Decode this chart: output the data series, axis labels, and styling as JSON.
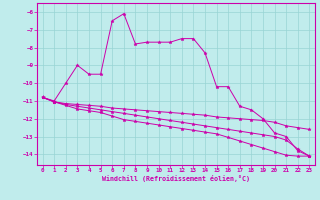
{
  "background_color": "#c0ecec",
  "grid_color": "#98d4d4",
  "line_color": "#cc00aa",
  "xlabel": "Windchill (Refroidissement éolien,°C)",
  "xlim": [
    -0.5,
    23.5
  ],
  "ylim": [
    -14.6,
    -5.5
  ],
  "xticks": [
    0,
    1,
    2,
    3,
    4,
    5,
    6,
    7,
    8,
    9,
    10,
    11,
    12,
    13,
    14,
    15,
    16,
    17,
    18,
    19,
    20,
    21,
    22,
    23
  ],
  "yticks": [
    -6,
    -7,
    -8,
    -9,
    -10,
    -11,
    -12,
    -13,
    -14
  ],
  "series1": {
    "x": [
      0,
      1,
      2,
      3,
      4,
      5,
      6,
      7,
      8,
      9,
      10,
      11,
      12,
      13,
      14,
      15,
      16,
      17,
      18,
      19,
      20,
      21,
      22,
      23
    ],
    "y": [
      -10.8,
      -11.0,
      -10.0,
      -9.0,
      -9.5,
      -9.5,
      -6.5,
      -6.1,
      -7.8,
      -7.7,
      -7.7,
      -7.7,
      -7.5,
      -7.5,
      -8.3,
      -10.2,
      -10.2,
      -11.3,
      -11.5,
      -12.0,
      -12.8,
      -13.0,
      -13.8,
      -14.1
    ]
  },
  "series2": {
    "x": [
      0,
      1,
      2,
      3,
      4,
      5,
      6,
      7,
      8,
      9,
      10,
      11,
      12,
      13,
      14,
      15,
      16,
      17,
      18,
      19,
      20,
      21,
      22,
      23
    ],
    "y": [
      -10.8,
      -11.05,
      -11.15,
      -11.2,
      -11.25,
      -11.3,
      -11.4,
      -11.45,
      -11.5,
      -11.55,
      -11.6,
      -11.65,
      -11.7,
      -11.75,
      -11.8,
      -11.9,
      -11.95,
      -12.0,
      -12.05,
      -12.1,
      -12.2,
      -12.4,
      -12.5,
      -12.6
    ]
  },
  "series3": {
    "x": [
      0,
      1,
      2,
      3,
      4,
      5,
      6,
      7,
      8,
      9,
      10,
      11,
      12,
      13,
      14,
      15,
      16,
      17,
      18,
      19,
      20,
      21,
      22,
      23
    ],
    "y": [
      -10.8,
      -11.05,
      -11.2,
      -11.3,
      -11.4,
      -11.5,
      -11.6,
      -11.7,
      -11.8,
      -11.9,
      -12.0,
      -12.1,
      -12.2,
      -12.3,
      -12.4,
      -12.5,
      -12.6,
      -12.7,
      -12.8,
      -12.9,
      -13.0,
      -13.2,
      -13.7,
      -14.1
    ]
  },
  "series4": {
    "x": [
      0,
      1,
      2,
      3,
      4,
      5,
      6,
      7,
      8,
      9,
      10,
      11,
      12,
      13,
      14,
      15,
      16,
      17,
      18,
      19,
      20,
      21,
      22,
      23
    ],
    "y": [
      -10.8,
      -11.05,
      -11.25,
      -11.45,
      -11.55,
      -11.65,
      -11.85,
      -12.05,
      -12.15,
      -12.25,
      -12.35,
      -12.45,
      -12.55,
      -12.65,
      -12.75,
      -12.85,
      -13.05,
      -13.25,
      -13.45,
      -13.65,
      -13.85,
      -14.05,
      -14.1,
      -14.1
    ]
  }
}
